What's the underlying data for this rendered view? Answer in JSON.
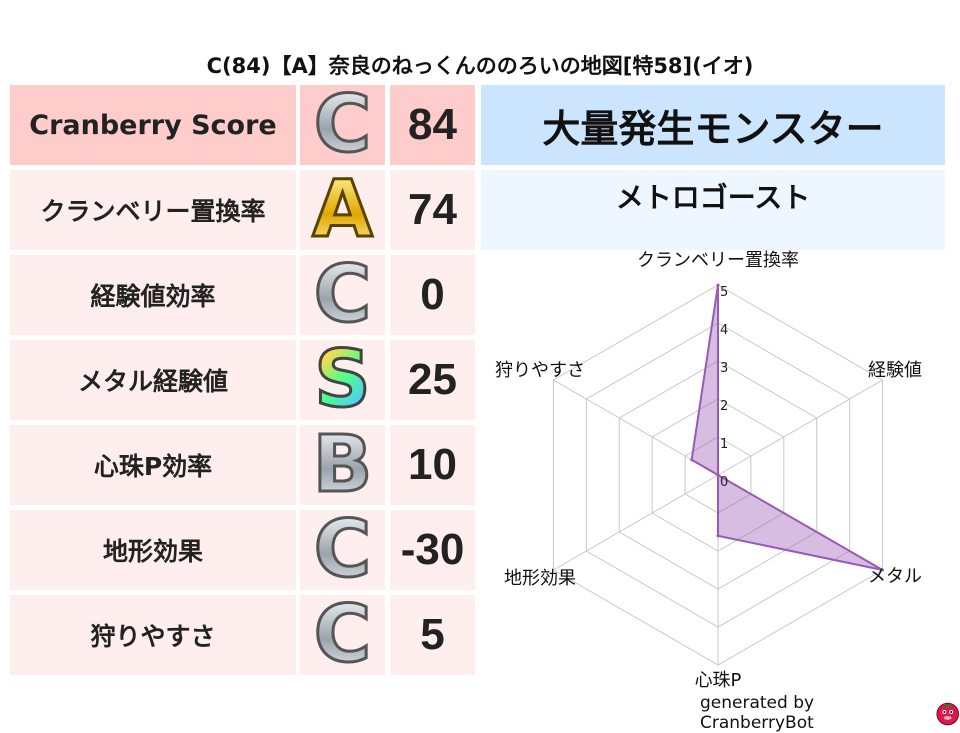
{
  "title": "C(84)【A】奈良のねっくんののろいの地図[特58](イオ)",
  "rows": [
    {
      "label": "Cranberry Score",
      "grade": "C",
      "value": "84",
      "grade_style": "silver"
    },
    {
      "label": "クランベリー置換率",
      "grade": "A",
      "value": "74",
      "grade_style": "gold"
    },
    {
      "label": "経験値効率",
      "grade": "C",
      "value": "0",
      "grade_style": "silver"
    },
    {
      "label": "メタル経験値",
      "grade": "S",
      "value": "25",
      "grade_style": "rainbow"
    },
    {
      "label": "心珠P効率",
      "grade": "B",
      "value": "10",
      "grade_style": "silver"
    },
    {
      "label": "地形効果",
      "grade": "C",
      "value": "-30",
      "grade_style": "silver"
    },
    {
      "label": "狩りやすさ",
      "grade": "C",
      "value": "5",
      "grade_style": "silver"
    }
  ],
  "colors": {
    "header_row": "#ffcccc",
    "row": "#ffeeee",
    "right_header": "#cce5ff",
    "right_sub": "#eef6ff",
    "radar": "#9b59b6"
  },
  "right": {
    "header": "大量発生モンスター",
    "monster": "メトロゴースト"
  },
  "chart_data": {
    "type": "radar",
    "axes": [
      "クランベリー置換率",
      "経験値",
      "メタル",
      "心珠P",
      "地形効果",
      "狩りやすさ"
    ],
    "values": [
      5,
      0,
      5,
      1.6,
      0,
      0.8
    ],
    "rlim": [
      0,
      5
    ],
    "ticks": [
      "0",
      "1",
      "2",
      "3",
      "4",
      "5"
    ],
    "grid": true
  },
  "footer": {
    "text": "generated by CranberryBot",
    "icon": "cranberry-mascot-icon"
  }
}
